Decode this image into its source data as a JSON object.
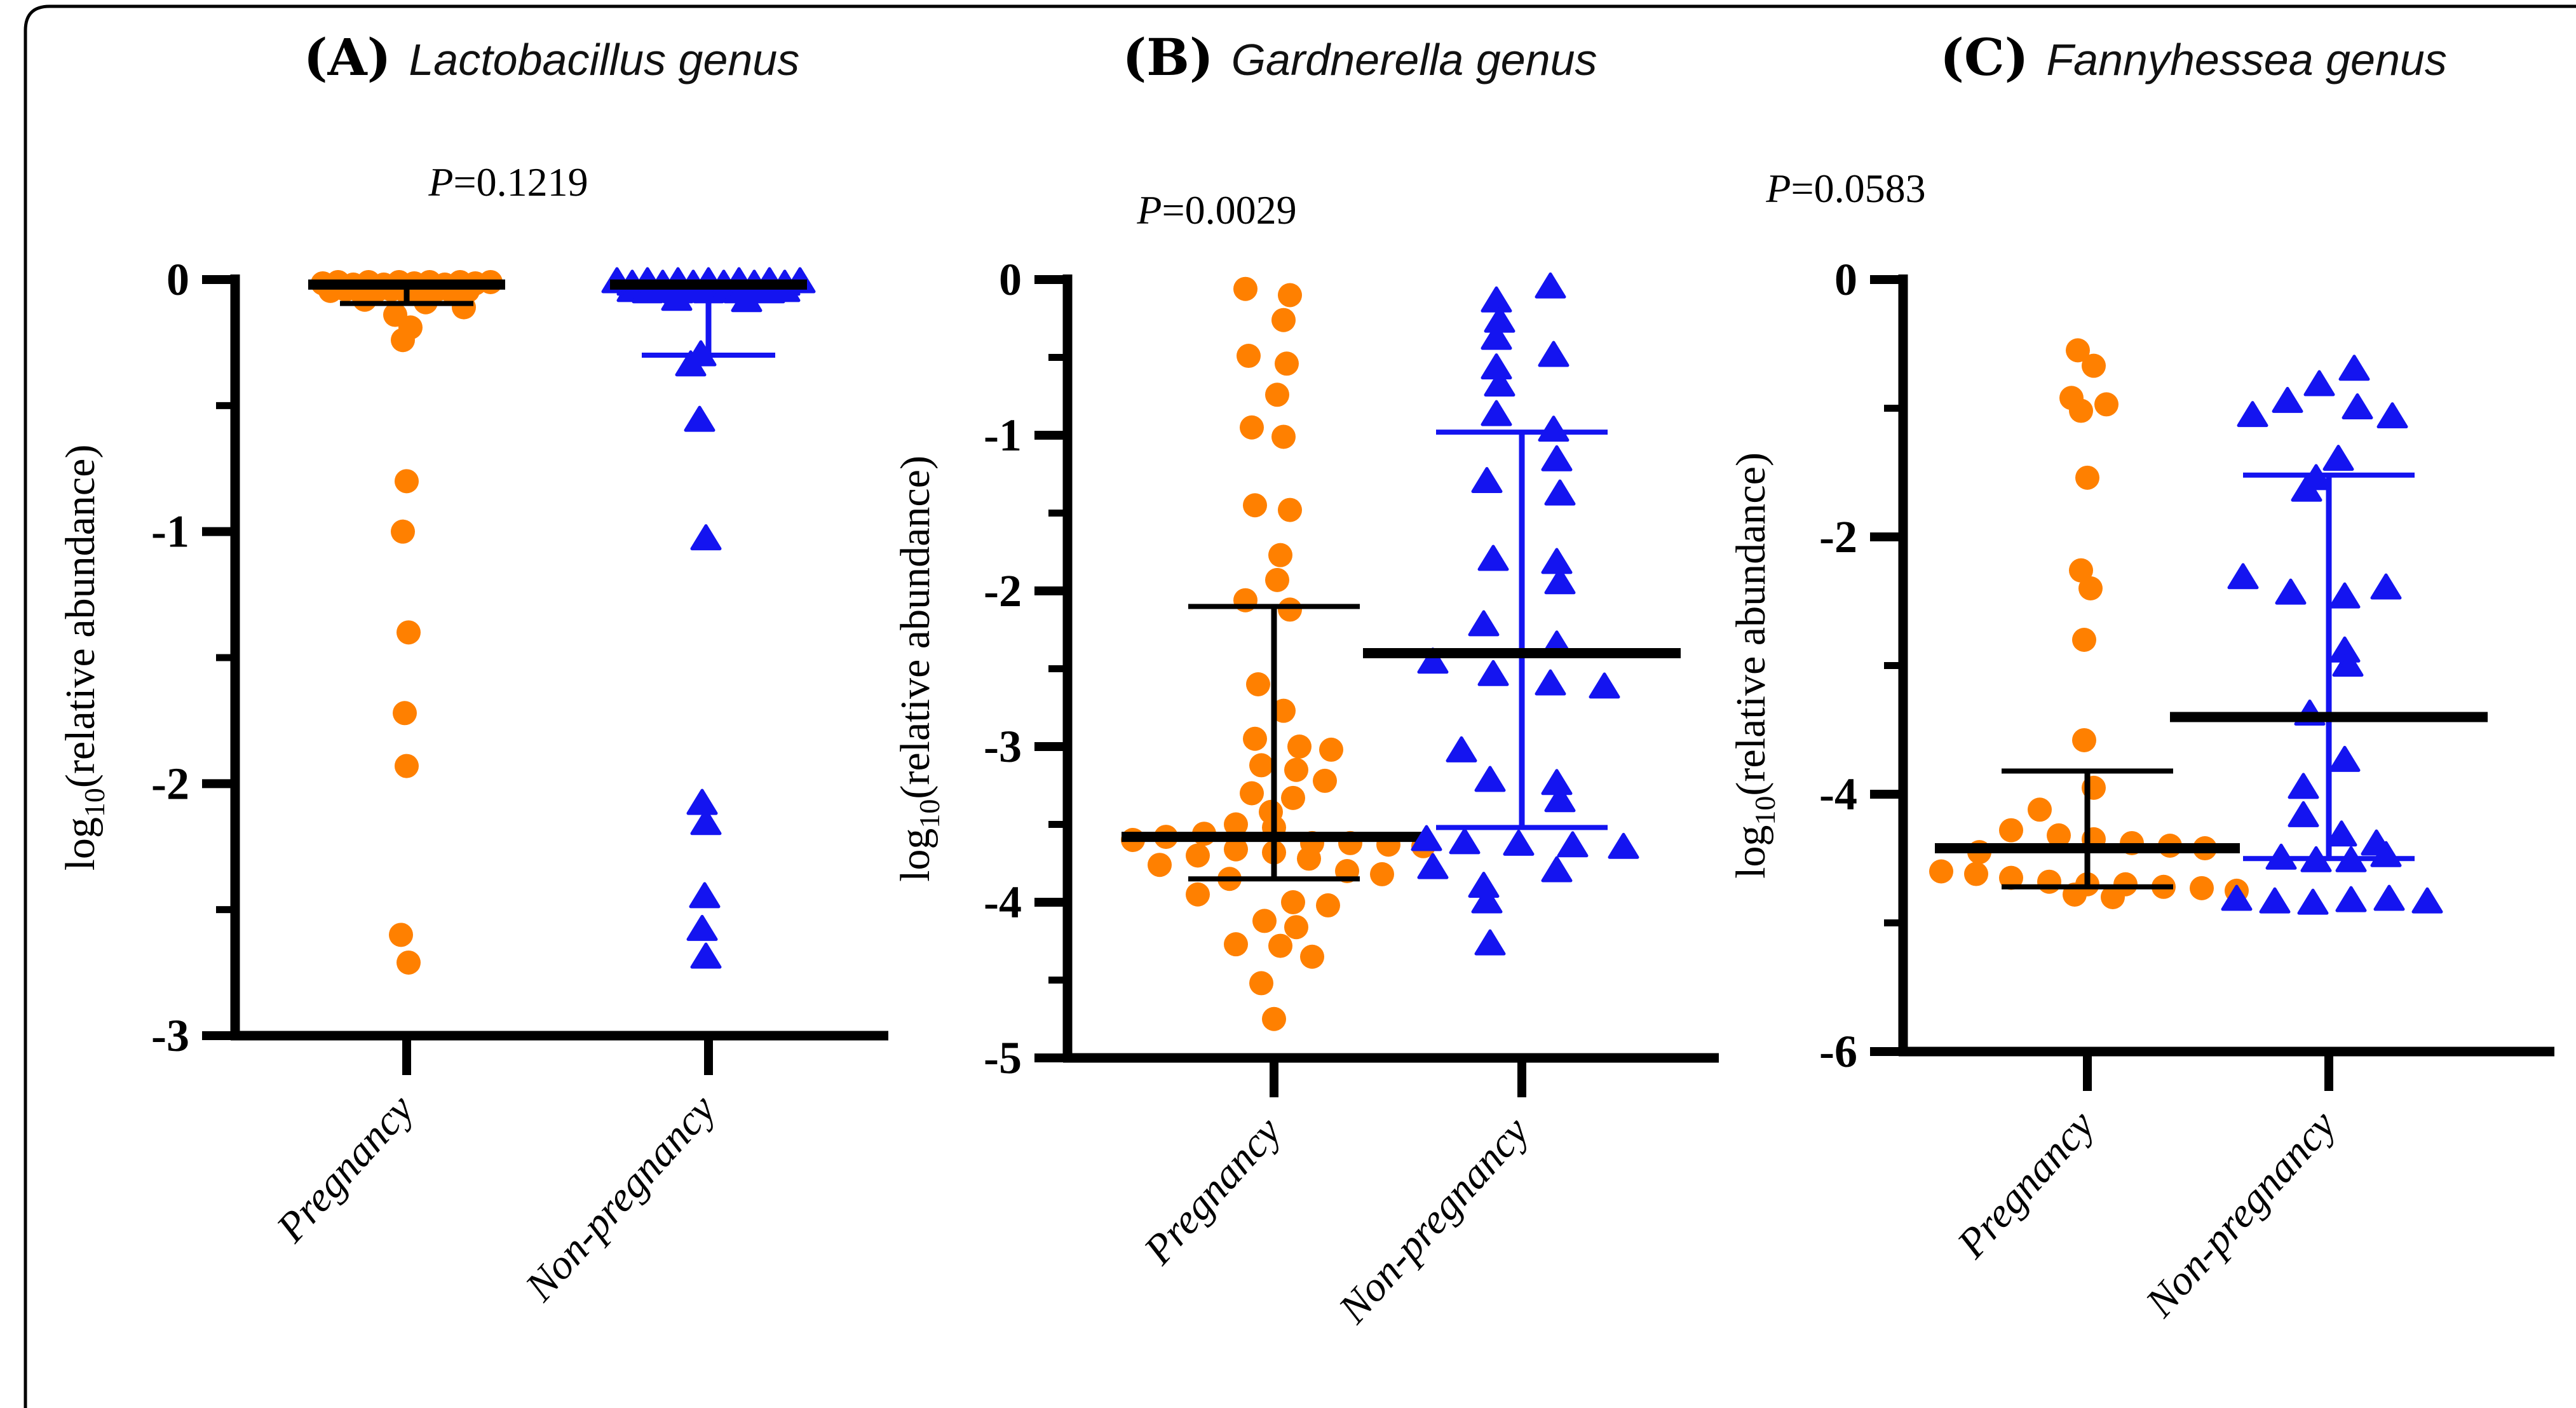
{
  "figure": {
    "border_color": "#000000",
    "background": "#ffffff",
    "ylabel": {
      "prefix": "log",
      "sub": "10",
      "suffix": "(relative abundance)"
    },
    "groups": [
      "Pregnancy",
      "Non-pregnancy"
    ],
    "colors": {
      "pregnancy": "#FF8000",
      "non_pregnancy": "#1414F0",
      "stat": "#000000"
    }
  },
  "chart_data": [
    {
      "type": "scatter",
      "panel_label": "(A)",
      "title": "Lactobacillus genus",
      "p_label": "=0.1219",
      "p_prefix": "P",
      "ylim": [
        -3,
        0
      ],
      "major_ticks": [
        0,
        -1,
        -2,
        -3
      ],
      "minor_ticks": [
        -0.5,
        -1.5,
        -2.5
      ],
      "grid": false,
      "layout": {
        "axis_x": 370,
        "top": 440,
        "bottom": 1630,
        "base_end": 1398,
        "cols": [
          640,
          1115
        ],
        "title_x": 868,
        "title_y": 118,
        "p_x": 800,
        "p_y": 308,
        "ylabel_x": 148
      },
      "series": [
        {
          "name": "Pregnancy",
          "marker": "circle",
          "median": -0.02,
          "cap_top": null,
          "cap_bottom": -0.095,
          "median_halfw": 155,
          "cap_halfw": 105,
          "points": [
            [
              -132,
              -0.015
            ],
            [
              -108,
              -0.01
            ],
            [
              -84,
              -0.02
            ],
            [
              -60,
              -0.01
            ],
            [
              -36,
              -0.02
            ],
            [
              -12,
              -0.01
            ],
            [
              12,
              -0.015
            ],
            [
              36,
              -0.01
            ],
            [
              60,
              -0.02
            ],
            [
              84,
              -0.01
            ],
            [
              108,
              -0.015
            ],
            [
              132,
              -0.01
            ],
            [
              -120,
              -0.045
            ],
            [
              -96,
              -0.04
            ],
            [
              -72,
              -0.05
            ],
            [
              -48,
              -0.045
            ],
            [
              -24,
              -0.04
            ],
            [
              0,
              -0.05
            ],
            [
              24,
              -0.045
            ],
            [
              48,
              -0.04
            ],
            [
              72,
              -0.05
            ],
            [
              96,
              -0.045
            ],
            [
              -66,
              -0.08
            ],
            [
              30,
              -0.09
            ],
            [
              90,
              -0.11
            ],
            [
              -18,
              -0.14
            ],
            [
              6,
              -0.19
            ],
            [
              -6,
              -0.24
            ],
            [
              0,
              -0.8
            ],
            [
              -6,
              -1.0
            ],
            [
              3,
              -1.4
            ],
            [
              -3,
              -1.72
            ],
            [
              0,
              -1.93
            ],
            [
              -9,
              -2.6
            ],
            [
              3,
              -2.71
            ]
          ]
        },
        {
          "name": "Non-pregnancy",
          "marker": "triangle",
          "median": -0.02,
          "cap_top": null,
          "cap_bottom": -0.3,
          "median_halfw": 155,
          "cap_halfw": 105,
          "points": [
            [
              -144,
              -0.01
            ],
            [
              -120,
              -0.02
            ],
            [
              -96,
              -0.01
            ],
            [
              -72,
              -0.02
            ],
            [
              -48,
              -0.01
            ],
            [
              -24,
              -0.02
            ],
            [
              0,
              -0.01
            ],
            [
              24,
              -0.02
            ],
            [
              48,
              -0.01
            ],
            [
              72,
              -0.02
            ],
            [
              96,
              -0.01
            ],
            [
              120,
              -0.02
            ],
            [
              144,
              -0.01
            ],
            [
              -120,
              -0.045
            ],
            [
              -96,
              -0.05
            ],
            [
              -72,
              -0.04
            ],
            [
              -48,
              -0.05
            ],
            [
              -24,
              -0.04
            ],
            [
              0,
              -0.05
            ],
            [
              24,
              -0.04
            ],
            [
              48,
              -0.05
            ],
            [
              72,
              -0.04
            ],
            [
              96,
              -0.05
            ],
            [
              120,
              -0.045
            ],
            [
              -50,
              -0.08
            ],
            [
              60,
              -0.085
            ],
            [
              -12,
              -0.3
            ],
            [
              -28,
              -0.34
            ],
            [
              -14,
              -0.56
            ],
            [
              -4,
              -1.03
            ],
            [
              -10,
              -2.08
            ],
            [
              -4,
              -2.16
            ],
            [
              -6,
              -2.45
            ],
            [
              -10,
              -2.58
            ],
            [
              -4,
              -2.69
            ]
          ]
        }
      ]
    },
    {
      "type": "scatter",
      "panel_label": "(B)",
      "title": "Gardnerella genus",
      "p_label": "=0.0029",
      "p_prefix": "P",
      "ylim": [
        -5,
        0
      ],
      "major_ticks": [
        0,
        -1,
        -2,
        -3,
        -4,
        -5
      ],
      "minor_ticks": [
        -0.5,
        -1.5,
        -2.5,
        -3.5,
        -4.5
      ],
      "grid": false,
      "layout": {
        "axis_x": 1680,
        "top": 440,
        "bottom": 1665,
        "base_end": 2705,
        "cols": [
          2005,
          2395
        ],
        "title_x": 2140,
        "title_y": 118,
        "p_x": 1915,
        "p_y": 352,
        "ylabel_x": 1462
      },
      "series": [
        {
          "name": "Pregnancy",
          "marker": "circle",
          "median": -3.58,
          "cap_top": -2.1,
          "cap_bottom": -3.85,
          "median_halfw": 240,
          "cap_halfw": 135,
          "points": [
            [
              -45,
              -0.06
            ],
            [
              25,
              -0.1
            ],
            [
              15,
              -0.26
            ],
            [
              -40,
              -0.49
            ],
            [
              20,
              -0.54
            ],
            [
              5,
              -0.74
            ],
            [
              -35,
              -0.95
            ],
            [
              15,
              -1.01
            ],
            [
              -30,
              -1.45
            ],
            [
              25,
              -1.48
            ],
            [
              10,
              -1.77
            ],
            [
              5,
              -1.93
            ],
            [
              -45,
              -2.06
            ],
            [
              25,
              -2.12
            ],
            [
              -25,
              -2.6
            ],
            [
              15,
              -2.77
            ],
            [
              -30,
              -2.95
            ],
            [
              40,
              -3.0
            ],
            [
              90,
              -3.02
            ],
            [
              -20,
              -3.12
            ],
            [
              35,
              -3.15
            ],
            [
              80,
              -3.22
            ],
            [
              -35,
              -3.3
            ],
            [
              30,
              -3.33
            ],
            [
              -5,
              -3.42
            ],
            [
              -60,
              -3.5
            ],
            [
              0,
              -3.52
            ],
            [
              -110,
              -3.56
            ],
            [
              -170,
              -3.58
            ],
            [
              -222,
              -3.6
            ],
            [
              60,
              -3.62
            ],
            [
              120,
              -3.62
            ],
            [
              180,
              -3.63
            ],
            [
              235,
              -3.64
            ],
            [
              -60,
              -3.66
            ],
            [
              0,
              -3.68
            ],
            [
              -120,
              -3.7
            ],
            [
              55,
              -3.72
            ],
            [
              -180,
              -3.76
            ],
            [
              115,
              -3.8
            ],
            [
              170,
              -3.82
            ],
            [
              -70,
              -3.85
            ],
            [
              -120,
              -3.95
            ],
            [
              30,
              -4.0
            ],
            [
              85,
              -4.02
            ],
            [
              -15,
              -4.12
            ],
            [
              35,
              -4.16
            ],
            [
              -60,
              -4.27
            ],
            [
              10,
              -4.28
            ],
            [
              60,
              -4.35
            ],
            [
              -20,
              -4.52
            ],
            [
              0,
              -4.75
            ]
          ]
        },
        {
          "name": "Non-pregnancy",
          "marker": "triangle",
          "median": -2.4,
          "cap_top": -0.98,
          "cap_bottom": -3.52,
          "median_halfw": 250,
          "cap_halfw": 135,
          "points": [
            [
              45,
              -0.05
            ],
            [
              -40,
              -0.14
            ],
            [
              -35,
              -0.27
            ],
            [
              -40,
              -0.38
            ],
            [
              50,
              -0.49
            ],
            [
              -40,
              -0.57
            ],
            [
              -35,
              -0.68
            ],
            [
              -40,
              -0.87
            ],
            [
              50,
              -0.97
            ],
            [
              55,
              -1.16
            ],
            [
              -55,
              -1.3
            ],
            [
              60,
              -1.38
            ],
            [
              -45,
              -1.8
            ],
            [
              55,
              -1.82
            ],
            [
              60,
              -1.95
            ],
            [
              -60,
              -2.22
            ],
            [
              55,
              -2.35
            ],
            [
              -140,
              -2.46
            ],
            [
              -45,
              -2.54
            ],
            [
              45,
              -2.6
            ],
            [
              130,
              -2.62
            ],
            [
              -95,
              -3.03
            ],
            [
              -50,
              -3.22
            ],
            [
              55,
              -3.24
            ],
            [
              60,
              -3.35
            ],
            [
              -150,
              -3.6
            ],
            [
              -90,
              -3.62
            ],
            [
              -5,
              -3.63
            ],
            [
              80,
              -3.64
            ],
            [
              160,
              -3.65
            ],
            [
              -140,
              -3.78
            ],
            [
              55,
              -3.8
            ],
            [
              -60,
              -3.9
            ],
            [
              -55,
              -4.0
            ],
            [
              -50,
              -4.27
            ]
          ]
        }
      ]
    },
    {
      "type": "scatter",
      "panel_label": "(C)",
      "title": "Fannyhessea genus",
      "p_label": "=0.0583",
      "p_prefix": "P",
      "ylim": [
        -6,
        0
      ],
      "major_ticks": [
        0,
        -2,
        -4,
        -6
      ],
      "minor_ticks": [
        -1,
        -3,
        -5
      ],
      "grid": false,
      "layout": {
        "axis_x": 2995,
        "top": 440,
        "bottom": 1655,
        "base_end": 4020,
        "cols": [
          3285,
          3665
        ],
        "title_x": 3452,
        "title_y": 118,
        "p_x": 2905,
        "p_y": 318,
        "ylabel_x": 2777
      },
      "series": [
        {
          "name": "Pregnancy",
          "marker": "circle",
          "median": -4.42,
          "cap_top": -3.82,
          "cap_bottom": -4.72,
          "median_halfw": 240,
          "cap_halfw": 135,
          "points": [
            [
              -15,
              -0.55
            ],
            [
              10,
              -0.67
            ],
            [
              -25,
              -0.92
            ],
            [
              30,
              -0.97
            ],
            [
              -10,
              -1.02
            ],
            [
              0,
              -1.54
            ],
            [
              -10,
              -2.26
            ],
            [
              5,
              -2.4
            ],
            [
              -5,
              -2.8
            ],
            [
              -5,
              -3.58
            ],
            [
              10,
              -3.95
            ],
            [
              -75,
              -4.12
            ],
            [
              -120,
              -4.28
            ],
            [
              -45,
              -4.32
            ],
            [
              10,
              -4.35
            ],
            [
              70,
              -4.38
            ],
            [
              130,
              -4.4
            ],
            [
              185,
              -4.42
            ],
            [
              -170,
              -4.45
            ],
            [
              -230,
              -4.6
            ],
            [
              -175,
              -4.62
            ],
            [
              -120,
              -4.65
            ],
            [
              -60,
              -4.68
            ],
            [
              0,
              -4.7
            ],
            [
              60,
              -4.7
            ],
            [
              120,
              -4.72
            ],
            [
              180,
              -4.73
            ],
            [
              235,
              -4.75
            ],
            [
              -20,
              -4.78
            ],
            [
              40,
              -4.8
            ]
          ]
        },
        {
          "name": "Non-pregnancy",
          "marker": "triangle",
          "median": -3.4,
          "cap_top": -1.52,
          "cap_bottom": -4.5,
          "median_halfw": 250,
          "cap_halfw": 135,
          "points": [
            [
              40,
              -0.7
            ],
            [
              -15,
              -0.82
            ],
            [
              -65,
              -0.95
            ],
            [
              45,
              -1.0
            ],
            [
              -120,
              -1.06
            ],
            [
              100,
              -1.07
            ],
            [
              15,
              -1.4
            ],
            [
              -20,
              -1.55
            ],
            [
              -35,
              -1.64
            ],
            [
              -135,
              -2.32
            ],
            [
              -60,
              -2.44
            ],
            [
              25,
              -2.47
            ],
            [
              90,
              -2.4
            ],
            [
              25,
              -2.89
            ],
            [
              30,
              -3.0
            ],
            [
              -30,
              -3.38
            ],
            [
              25,
              -3.74
            ],
            [
              -40,
              -3.95
            ],
            [
              -40,
              -4.17
            ],
            [
              20,
              -4.32
            ],
            [
              75,
              -4.39
            ],
            [
              -75,
              -4.5
            ],
            [
              -20,
              -4.52
            ],
            [
              35,
              -4.52
            ],
            [
              90,
              -4.48
            ],
            [
              -145,
              -4.82
            ],
            [
              -85,
              -4.84
            ],
            [
              -25,
              -4.85
            ],
            [
              35,
              -4.83
            ],
            [
              95,
              -4.82
            ],
            [
              155,
              -4.84
            ]
          ]
        }
      ]
    }
  ]
}
